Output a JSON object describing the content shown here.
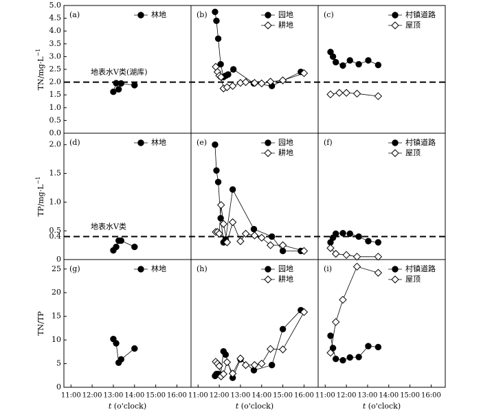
{
  "chart_data": {
    "type": "scatter",
    "layout": "3x3 panel grid, shared x-axis per column, shared y-axis per row",
    "x_tick_labels": [
      "11:00",
      "12:00",
      "13:00",
      "14:00",
      "15:00",
      "16:00"
    ],
    "x_range": [
      "10:40",
      "16:40"
    ],
    "xlabel_var": "t",
    "xlabel_unit": " (o'clock)",
    "rows": [
      {
        "ylabel": "TN/mg·L",
        "ylabel_sup": "−1",
        "yticks": [
          "0.0",
          "0.5",
          "1.0",
          "1.5",
          "2.0",
          "2.5",
          "3.0",
          "3.5",
          "4.0",
          "4.5",
          "5.0"
        ],
        "ylim": [
          0,
          5
        ],
        "reference_line": {
          "y": 2.0,
          "label": "地表水V类(湖库)"
        }
      },
      {
        "ylabel": "TP/mg·L",
        "ylabel_sup": "−1",
        "yticks": [
          "0",
          "0.4",
          "0.5",
          "1.0",
          "1.5",
          "2.0"
        ],
        "ylim": [
          0,
          2.2
        ],
        "reference_line": {
          "y": 0.4,
          "label": "地表水V类"
        }
      },
      {
        "ylabel": "TN/TP",
        "ylabel_sup": "",
        "yticks": [
          "0",
          "5",
          "10",
          "15",
          "20",
          "25"
        ],
        "ylim": [
          0,
          27
        ],
        "reference_line": null
      }
    ],
    "panels": [
      {
        "tag": "(a)",
        "series": [
          {
            "name": "林地",
            "marker": "circle-filled",
            "x": [
              "13:00",
              "13:08",
              "13:15",
              "13:22",
              "14:00"
            ],
            "y": [
              1.62,
              1.96,
              1.72,
              1.95,
              1.88
            ]
          }
        ]
      },
      {
        "tag": "(b)",
        "series": [
          {
            "name": "园地",
            "marker": "circle-filled",
            "x": [
              "11:48",
              "11:52",
              "11:57",
              "12:04",
              "12:12",
              "12:18",
              "12:25",
              "12:40",
              "13:38",
              "14:29",
              "15:51"
            ],
            "y": [
              4.75,
              4.4,
              3.7,
              2.7,
              2.2,
              2.25,
              2.3,
              2.5,
              1.95,
              1.85,
              2.4
            ]
          },
          {
            "name": "耕地",
            "marker": "diamond-open",
            "x": [
              "11:50",
              "11:55",
              "12:00",
              "12:05",
              "12:12",
              "12:22",
              "12:38",
              "13:00",
              "13:15",
              "13:40",
              "14:00",
              "14:25",
              "15:00",
              "16:00"
            ],
            "y": [
              2.6,
              2.4,
              2.25,
              2.2,
              1.75,
              1.8,
              1.85,
              1.97,
              2.0,
              1.97,
              1.95,
              2.02,
              2.07,
              2.35
            ]
          }
        ]
      },
      {
        "tag": "(c)",
        "series": [
          {
            "name": "村镇道路",
            "marker": "circle-filled",
            "x": [
              "11:15",
              "11:22",
              "11:30",
              "11:50",
              "12:10",
              "12:35",
              "13:02",
              "13:30"
            ],
            "y": [
              3.18,
              3.0,
              2.78,
              2.65,
              2.85,
              2.7,
              2.85,
              2.67
            ]
          },
          {
            "name": "屋顶",
            "marker": "diamond-open",
            "x": [
              "11:15",
              "11:40",
              "12:00",
              "12:30",
              "13:30"
            ],
            "y": [
              1.52,
              1.58,
              1.58,
              1.55,
              1.45
            ]
          }
        ]
      },
      {
        "tag": "(d)",
        "series": [
          {
            "name": "林地",
            "marker": "circle-filled",
            "x": [
              "13:00",
              "13:08",
              "13:15",
              "13:22",
              "14:00"
            ],
            "y": [
              0.16,
              0.22,
              0.33,
              0.33,
              0.22
            ]
          }
        ]
      },
      {
        "tag": "(e)",
        "series": [
          {
            "name": "园地",
            "marker": "circle-filled",
            "x": [
              "11:48",
              "11:52",
              "11:57",
              "12:04",
              "12:12",
              "12:18",
              "12:38",
              "13:38",
              "14:29",
              "15:00",
              "15:51"
            ],
            "y": [
              2.0,
              1.55,
              1.35,
              0.72,
              0.3,
              0.35,
              1.22,
              0.53,
              0.4,
              0.15,
              0.15
            ]
          },
          {
            "name": "耕地",
            "marker": "diamond-open",
            "x": [
              "11:50",
              "11:55",
              "12:00",
              "12:05",
              "12:12",
              "12:22",
              "12:38",
              "13:00",
              "13:15",
              "13:40",
              "14:00",
              "14:25",
              "15:00",
              "16:00"
            ],
            "y": [
              0.48,
              0.48,
              0.45,
              0.95,
              0.62,
              0.3,
              0.65,
              0.32,
              0.45,
              0.42,
              0.38,
              0.25,
              0.25,
              0.15
            ]
          }
        ]
      },
      {
        "tag": "(f)",
        "series": [
          {
            "name": "村镇道路",
            "marker": "circle-filled",
            "x": [
              "11:15",
              "11:22",
              "11:30",
              "11:50",
              "12:10",
              "12:35",
              "13:02",
              "13:30"
            ],
            "y": [
              0.3,
              0.38,
              0.45,
              0.46,
              0.45,
              0.4,
              0.32,
              0.3
            ]
          },
          {
            "name": "屋顶",
            "marker": "diamond-open",
            "x": [
              "11:15",
              "11:30",
              "12:00",
              "12:30",
              "13:30"
            ],
            "y": [
              0.2,
              0.1,
              0.08,
              0.05,
              0.05
            ]
          }
        ]
      },
      {
        "tag": "(g)",
        "series": [
          {
            "name": "林地",
            "marker": "circle-filled",
            "x": [
              "13:00",
              "13:08",
              "13:15",
              "13:22",
              "14:00"
            ],
            "y": [
              10.2,
              9.3,
              5.2,
              5.9,
              8.2
            ]
          }
        ]
      },
      {
        "tag": "(h)",
        "series": [
          {
            "name": "园地",
            "marker": "circle-filled",
            "x": [
              "11:48",
              "11:52",
              "11:57",
              "12:04",
              "12:12",
              "12:18",
              "12:38",
              "13:00",
              "13:38",
              "14:29",
              "15:00",
              "15:51"
            ],
            "y": [
              2.4,
              2.8,
              2.8,
              2.6,
              7.6,
              6.9,
              2.0,
              5.9,
              3.6,
              4.7,
              12.3,
              16.3
            ]
          },
          {
            "name": "耕地",
            "marker": "diamond-open",
            "x": [
              "11:50",
              "11:55",
              "12:00",
              "12:05",
              "12:12",
              "12:22",
              "12:38",
              "13:00",
              "13:15",
              "13:40",
              "14:00",
              "14:25",
              "15:00",
              "16:00"
            ],
            "y": [
              5.4,
              5.0,
              4.5,
              2.3,
              2.8,
              5.3,
              2.9,
              6.1,
              4.7,
              4.7,
              5.0,
              8.1,
              8.0,
              15.9
            ]
          }
        ]
      },
      {
        "tag": "(i)",
        "series": [
          {
            "name": "村镇道路",
            "marker": "circle-filled",
            "x": [
              "11:15",
              "11:22",
              "11:30",
              "11:50",
              "12:10",
              "12:35",
              "13:02",
              "13:30"
            ],
            "y": [
              10.9,
              8.3,
              6.0,
              5.7,
              6.3,
              6.4,
              8.7,
              8.5
            ]
          },
          {
            "name": "屋顶",
            "marker": "diamond-open",
            "x": [
              "11:15",
              "11:30",
              "11:50",
              "12:30",
              "13:30"
            ],
            "y": [
              7.3,
              13.8,
              18.5,
              25.5,
              24.2
            ]
          }
        ]
      }
    ]
  }
}
